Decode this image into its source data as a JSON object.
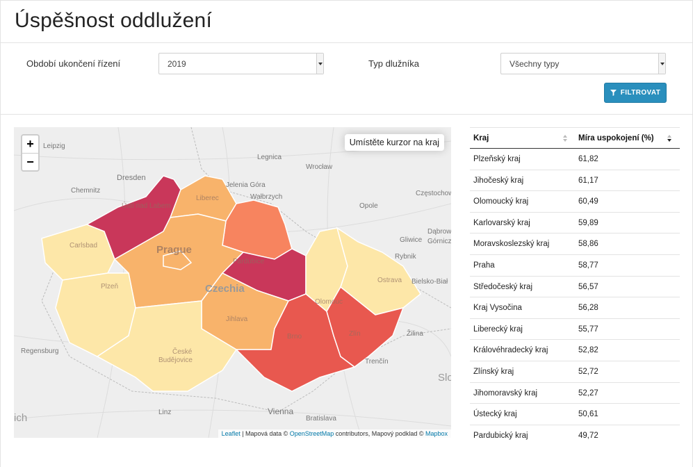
{
  "page": {
    "title": "Úspěšnost oddlužení"
  },
  "filters": {
    "period_label": "Období ukončení řízení",
    "period_value": "2019",
    "type_label": "Typ dlužníka",
    "type_value": "Všechny typy",
    "button_label": "FILTROVAT"
  },
  "map": {
    "zoom_in": "+",
    "zoom_out": "−",
    "info": "Umístěte kurzor na kraj",
    "attribution": {
      "leaflet": "Leaflet",
      "sep": " | Mapová data © ",
      "osm": "OpenStreetMap",
      "mid": " contributors, Mapový podklad © ",
      "mapbox": "Mapbox"
    },
    "colors": {
      "q1": "#c9375a",
      "q2": "#e8584f",
      "q3": "#f7845f",
      "q4": "#f8b36b",
      "q5": "#fbd38d",
      "q6": "#fde7a8"
    },
    "cities": {
      "leipzig": "Leipzig",
      "dresden": "Dresden",
      "chemnitz": "Chemnitz",
      "legnica": "Legnica",
      "wroclaw": "Wrocław",
      "jelenia": "Jelenia Góra",
      "walbrzych": "Wałbrzych",
      "opole": "Opole",
      "czestochowa": "Częstochow",
      "dabrowa": "Dąbrowa",
      "gliwice": "Gliwice",
      "gornicza": "Górnicza",
      "rybnik": "Rybnik",
      "bielsko": "Bielsko-Biał",
      "zilina": "Žilina",
      "trencin": "Trenčín",
      "slo": "Slo",
      "regensburg": "Regensburg",
      "ich": "ich",
      "linz": "Linz",
      "vienna": "Vienna",
      "bratislava": "Bratislava",
      "czechia": "Czechia",
      "usti": "Ústí nad Labem",
      "liberec": "Liberec",
      "karlovy": "Carlsbad",
      "praha": "Prague",
      "pardubice": "Pardubice",
      "plzen": "Plzeň",
      "jihlava": "Jihlava",
      "ostrava": "Ostrava",
      "olomouc": "Olomouc",
      "brno": "Brno",
      "zlin": "Zlín",
      "budejovice1": "České",
      "budejovice2": "Budějovice"
    }
  },
  "table": {
    "headers": {
      "region": "Kraj",
      "rate": "Míra uspokojení (%)"
    },
    "rows": [
      {
        "region": "Plzeňský kraj",
        "rate": "61,82"
      },
      {
        "region": "Jihočeský kraj",
        "rate": "61,17"
      },
      {
        "region": "Olomoucký kraj",
        "rate": "60,49"
      },
      {
        "region": "Karlovarský kraj",
        "rate": "59,89"
      },
      {
        "region": "Moravskoslezský kraj",
        "rate": "58,86"
      },
      {
        "region": "Praha",
        "rate": "58,77"
      },
      {
        "region": "Středočeský kraj",
        "rate": "56,57"
      },
      {
        "region": "Kraj Vysočina",
        "rate": "56,28"
      },
      {
        "region": "Liberecký kraj",
        "rate": "55,77"
      },
      {
        "region": "Královéhradecký kraj",
        "rate": "52,82"
      },
      {
        "region": "Zlínský kraj",
        "rate": "52,72"
      },
      {
        "region": "Jihomoravský kraj",
        "rate": "52,27"
      },
      {
        "region": "Ústecký kraj",
        "rate": "50,61"
      },
      {
        "region": "Pardubický kraj",
        "rate": "49,72"
      }
    ]
  }
}
